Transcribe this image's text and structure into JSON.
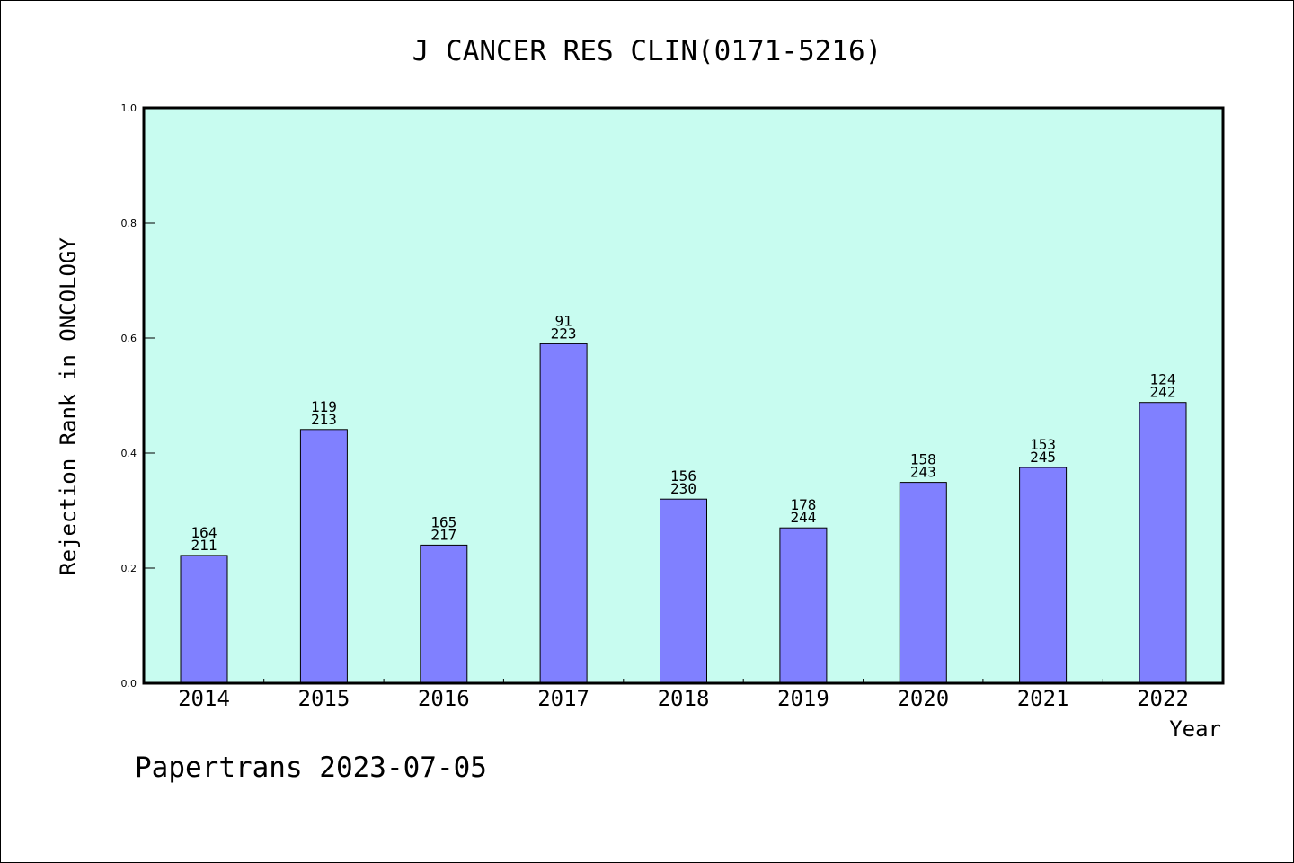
{
  "chart_data": {
    "type": "bar",
    "title": "J CANCER RES CLIN(0171-5216)",
    "xlabel": "Year",
    "ylabel": "Rejection Rank in ONCOLOGY",
    "ylim": [
      0,
      1.0
    ],
    "yticks": [
      "0.0",
      "0.2",
      "0.4",
      "0.6",
      "0.8",
      "1.0"
    ],
    "grid": false,
    "legend": "none",
    "categories": [
      "2014",
      "2015",
      "2016",
      "2017",
      "2018",
      "2019",
      "2020",
      "2021",
      "2022"
    ],
    "values": [
      0.222,
      0.441,
      0.24,
      0.59,
      0.32,
      0.27,
      0.349,
      0.375,
      0.488
    ],
    "labels_top": [
      "164",
      "119",
      "165",
      "91",
      "156",
      "178",
      "158",
      "153",
      "124"
    ],
    "labels_bottom": [
      "211",
      "213",
      "217",
      "223",
      "230",
      "244",
      "243",
      "245",
      "242"
    ],
    "colors": {
      "plot_background": "#c8fcf0",
      "bar_fill": "#8080ff",
      "bar_stroke": "#000000"
    }
  },
  "footer": {
    "credit": "Papertrans 2023-07-05"
  }
}
